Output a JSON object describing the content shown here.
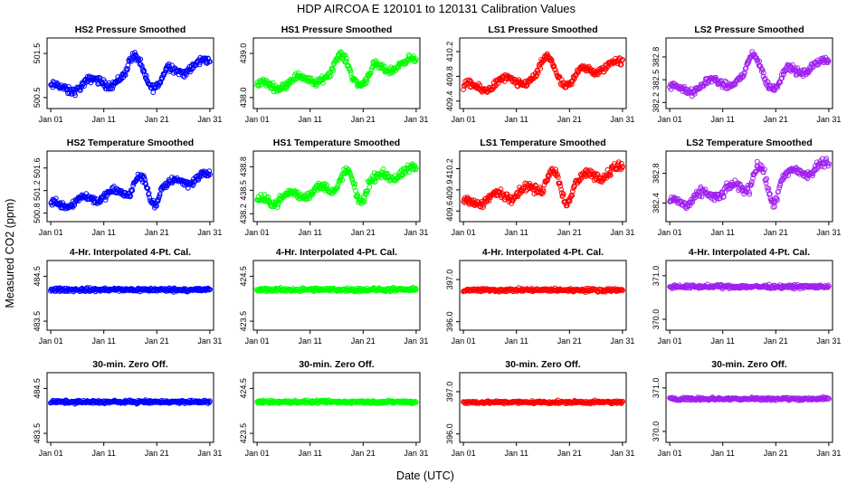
{
  "figure": {
    "title": "HDP   AIRCOA E   120101 to 120131   Calibration Values",
    "xlabel": "Date (UTC)",
    "ylabel": "Measured CO2 (ppm)"
  },
  "colors": {
    "blue": "#0000ff",
    "green": "#00ff00",
    "red": "#ff0000",
    "purple": "#a020f0"
  },
  "chart_data": [
    {
      "type": "scatter",
      "title": "HS2 Pressure Smoothed",
      "color": "blue",
      "x_ticks": [
        "Jan 01",
        "Jan 11",
        "Jan 21",
        "Jan 31"
      ],
      "x_tick_days": [
        1,
        11,
        21,
        31
      ],
      "xlim": [
        0.3,
        31.7
      ],
      "y_ticks": [
        "500.5",
        "501.5"
      ],
      "y_tick_values": [
        500.5,
        501.5
      ],
      "ylim": [
        500.25,
        501.85
      ],
      "pattern": "pressure",
      "center": 501.0,
      "amp": 0.45,
      "noise": 0.13
    },
    {
      "type": "scatter",
      "title": "HS1 Pressure Smoothed",
      "color": "green",
      "x_ticks": [
        "Jan 01",
        "Jan 11",
        "Jan 21",
        "Jan 31"
      ],
      "x_tick_days": [
        1,
        11,
        21,
        31
      ],
      "xlim": [
        0.3,
        31.7
      ],
      "y_ticks": [
        "438.0",
        "439.0"
      ],
      "y_tick_values": [
        438.0,
        439.0
      ],
      "ylim": [
        437.75,
        439.35
      ],
      "pattern": "pressure",
      "center": 438.55,
      "amp": 0.42,
      "noise": 0.12
    },
    {
      "type": "scatter",
      "title": "LS1 Pressure Smoothed",
      "color": "red",
      "x_ticks": [
        "Jan 01",
        "Jan 11",
        "Jan 21",
        "Jan 31"
      ],
      "x_tick_days": [
        1,
        11,
        21,
        31
      ],
      "xlim": [
        0.3,
        31.7
      ],
      "y_ticks": [
        "409.4",
        "409.8",
        "410.2"
      ],
      "y_tick_values": [
        409.4,
        409.8,
        410.2
      ],
      "ylim": [
        409.28,
        410.42
      ],
      "pattern": "pressure",
      "center": 409.82,
      "amp": 0.3,
      "noise": 0.09
    },
    {
      "type": "scatter",
      "title": "LS2 Pressure Smoothed",
      "color": "purple",
      "x_ticks": [
        "Jan 01",
        "Jan 11",
        "Jan 21",
        "Jan 31"
      ],
      "x_tick_days": [
        1,
        11,
        21,
        31
      ],
      "xlim": [
        0.3,
        31.7
      ],
      "y_ticks": [
        "382.2",
        "382.5",
        "382.8"
      ],
      "y_tick_values": [
        382.2,
        382.5,
        382.8
      ],
      "ylim": [
        382.12,
        383.05
      ],
      "pattern": "pressure",
      "center": 382.55,
      "amp": 0.27,
      "noise": 0.07
    },
    {
      "type": "scatter",
      "title": "HS2 Temperature Smoothed",
      "color": "blue",
      "x_ticks": [
        "Jan 01",
        "Jan 11",
        "Jan 21",
        "Jan 31"
      ],
      "x_tick_days": [
        1,
        11,
        21,
        31
      ],
      "xlim": [
        0.3,
        31.7
      ],
      "y_ticks": [
        "500.8",
        "501.2",
        "501.6"
      ],
      "y_tick_values": [
        500.8,
        501.2,
        501.6
      ],
      "ylim": [
        500.65,
        501.9
      ],
      "pattern": "temperature",
      "center": 501.2,
      "amp": 0.32,
      "noise": 0.1
    },
    {
      "type": "scatter",
      "title": "HS1 Temperature Smoothed",
      "color": "green",
      "x_ticks": [
        "Jan 01",
        "Jan 11",
        "Jan 21",
        "Jan 31"
      ],
      "x_tick_days": [
        1,
        11,
        21,
        31
      ],
      "xlim": [
        0.3,
        31.7
      ],
      "y_ticks": [
        "438.2",
        "438.5",
        "438.8"
      ],
      "y_tick_values": [
        438.2,
        438.5,
        438.8
      ],
      "ylim": [
        438.1,
        439.0
      ],
      "pattern": "temperature",
      "center": 438.55,
      "amp": 0.25,
      "noise": 0.08
    },
    {
      "type": "scatter",
      "title": "LS1 Temperature Smoothed",
      "color": "red",
      "x_ticks": [
        "Jan 01",
        "Jan 11",
        "Jan 21",
        "Jan 31"
      ],
      "x_tick_days": [
        1,
        11,
        21,
        31
      ],
      "xlim": [
        0.3,
        31.7
      ],
      "y_ticks": [
        "409.6",
        "409.9",
        "410.2"
      ],
      "y_tick_values": [
        409.6,
        409.9,
        410.2
      ],
      "ylim": [
        409.45,
        410.45
      ],
      "pattern": "temperature",
      "center": 409.95,
      "amp": 0.3,
      "noise": 0.09
    },
    {
      "type": "scatter",
      "title": "LS2 Temperature Smoothed",
      "color": "purple",
      "x_ticks": [
        "Jan 01",
        "Jan 11",
        "Jan 21",
        "Jan 31"
      ],
      "x_tick_days": [
        1,
        11,
        21,
        31
      ],
      "xlim": [
        0.3,
        31.7
      ],
      "y_ticks": [
        "382.4",
        "382.8"
      ],
      "y_tick_values": [
        382.4,
        382.8
      ],
      "ylim": [
        382.15,
        383.1
      ],
      "pattern": "temperature",
      "center": 382.65,
      "amp": 0.32,
      "noise": 0.09
    },
    {
      "type": "scatter",
      "title": "4-Hr. Interpolated 4-Pt. Cal.",
      "color": "blue",
      "x_ticks": [
        "Jan 01",
        "Jan 11",
        "Jan 21",
        "Jan 31"
      ],
      "x_tick_days": [
        1,
        11,
        21,
        31
      ],
      "xlim": [
        0.3,
        31.7
      ],
      "y_ticks": [
        "483.5",
        "484.5"
      ],
      "y_tick_values": [
        483.5,
        484.5
      ],
      "ylim": [
        483.3,
        484.85
      ],
      "pattern": "flat",
      "center": 484.2,
      "amp": 0,
      "noise": 0.06
    },
    {
      "type": "scatter",
      "title": "4-Hr. Interpolated 4-Pt. Cal.",
      "color": "green",
      "x_ticks": [
        "Jan 01",
        "Jan 11",
        "Jan 21",
        "Jan 31"
      ],
      "x_tick_days": [
        1,
        11,
        21,
        31
      ],
      "xlim": [
        0.3,
        31.7
      ],
      "y_ticks": [
        "423.5",
        "424.5"
      ],
      "y_tick_values": [
        423.5,
        424.5
      ],
      "ylim": [
        423.3,
        424.85
      ],
      "pattern": "flat",
      "center": 424.2,
      "amp": 0,
      "noise": 0.06
    },
    {
      "type": "scatter",
      "title": "4-Hr. Interpolated 4-Pt. Cal.",
      "color": "red",
      "x_ticks": [
        "Jan 01",
        "Jan 11",
        "Jan 21",
        "Jan 31"
      ],
      "x_tick_days": [
        1,
        11,
        21,
        31
      ],
      "xlim": [
        0.3,
        31.7
      ],
      "y_ticks": [
        "396.0",
        "397.0"
      ],
      "y_tick_values": [
        396.0,
        397.0
      ],
      "ylim": [
        395.8,
        397.45
      ],
      "pattern": "flat",
      "center": 396.75,
      "amp": 0,
      "noise": 0.06
    },
    {
      "type": "scatter",
      "title": "4-Hr. Interpolated 4-Pt. Cal.",
      "color": "purple",
      "x_ticks": [
        "Jan 01",
        "Jan 11",
        "Jan 21",
        "Jan 31"
      ],
      "x_tick_days": [
        1,
        11,
        21,
        31
      ],
      "xlim": [
        0.3,
        31.7
      ],
      "y_ticks": [
        "370.0",
        "371.0"
      ],
      "y_tick_values": [
        370.0,
        371.0
      ],
      "ylim": [
        369.75,
        371.35
      ],
      "pattern": "flat",
      "center": 370.75,
      "amp": 0,
      "noise": 0.06
    },
    {
      "type": "scatter",
      "title": "30-min. Zero Off.",
      "color": "blue",
      "x_ticks": [
        "Jan 01",
        "Jan 11",
        "Jan 21",
        "Jan 31"
      ],
      "x_tick_days": [
        1,
        11,
        21,
        31
      ],
      "xlim": [
        0.3,
        31.7
      ],
      "y_ticks": [
        "483.5",
        "484.5"
      ],
      "y_tick_values": [
        483.5,
        484.5
      ],
      "ylim": [
        483.3,
        484.85
      ],
      "pattern": "flat",
      "center": 484.2,
      "amp": 0,
      "noise": 0.05
    },
    {
      "type": "scatter",
      "title": "30-min. Zero Off.",
      "color": "green",
      "x_ticks": [
        "Jan 01",
        "Jan 11",
        "Jan 21",
        "Jan 31"
      ],
      "x_tick_days": [
        1,
        11,
        21,
        31
      ],
      "xlim": [
        0.3,
        31.7
      ],
      "y_ticks": [
        "423.5",
        "424.5"
      ],
      "y_tick_values": [
        423.5,
        424.5
      ],
      "ylim": [
        423.3,
        424.85
      ],
      "pattern": "flat",
      "center": 424.2,
      "amp": 0,
      "noise": 0.05
    },
    {
      "type": "scatter",
      "title": "30-min. Zero Off.",
      "color": "red",
      "x_ticks": [
        "Jan 01",
        "Jan 11",
        "Jan 21",
        "Jan 31"
      ],
      "x_tick_days": [
        1,
        11,
        21,
        31
      ],
      "xlim": [
        0.3,
        31.7
      ],
      "y_ticks": [
        "396.0",
        "397.0"
      ],
      "y_tick_values": [
        396.0,
        397.0
      ],
      "ylim": [
        395.8,
        397.45
      ],
      "pattern": "flat",
      "center": 396.75,
      "amp": 0,
      "noise": 0.05
    },
    {
      "type": "scatter",
      "title": "30-min. Zero Off.",
      "color": "purple",
      "x_ticks": [
        "Jan 01",
        "Jan 11",
        "Jan 21",
        "Jan 31"
      ],
      "x_tick_days": [
        1,
        11,
        21,
        31
      ],
      "xlim": [
        0.3,
        31.7
      ],
      "y_ticks": [
        "370.0",
        "371.0"
      ],
      "y_tick_values": [
        370.0,
        371.0
      ],
      "ylim": [
        369.75,
        371.35
      ],
      "pattern": "flat",
      "center": 370.75,
      "amp": 0,
      "noise": 0.05
    }
  ]
}
